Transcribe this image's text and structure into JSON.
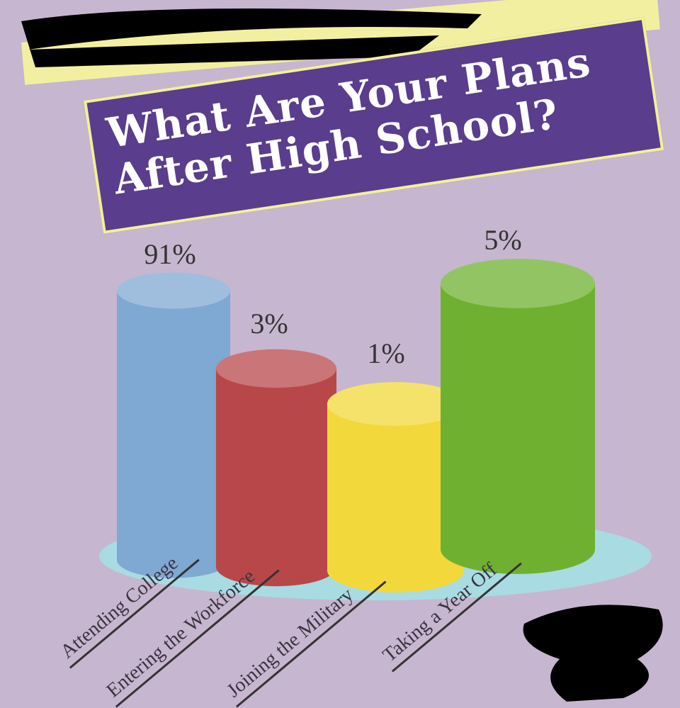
{
  "chart_data": {
    "type": "bar",
    "title": "What Are Your Plans After High School?",
    "title_lines": [
      "What Are Your Plans",
      "After High School?"
    ],
    "categories": [
      "Attending College",
      "Entering the Workforce",
      "Joining the Military",
      "Taking a Year Off"
    ],
    "values": [
      91,
      3,
      1,
      5
    ],
    "data_labels": [
      "91%",
      "3%",
      "1%",
      "5%"
    ],
    "colors": [
      "#7fa8d2",
      "#b8474a",
      "#f2d83a",
      "#6fb030"
    ],
    "style": "3d-cylinder",
    "grid": false
  }
}
